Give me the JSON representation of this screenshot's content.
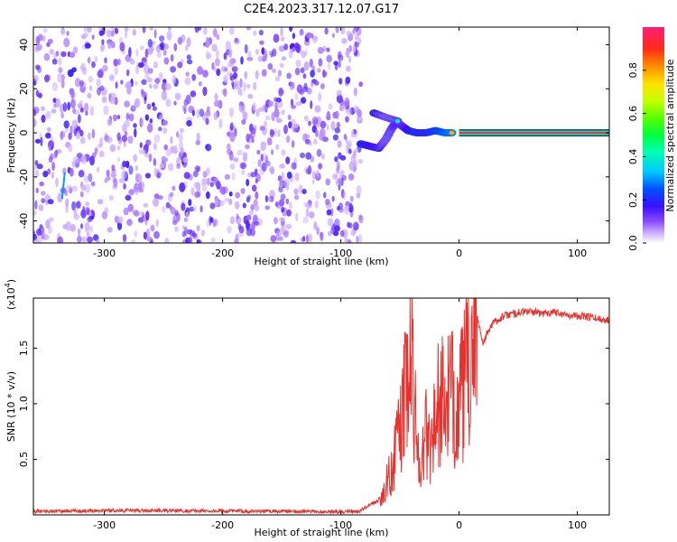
{
  "title": "C2E4.2023.317.12.07.G17",
  "colors": {
    "signal": "#e8302c",
    "axis": "#000000",
    "background": "#ffffff"
  },
  "chart_data": [
    {
      "type": "heatmap",
      "xlabel": "Height of straight line (km)",
      "ylabel": "Frequency (Hz)",
      "xlim": [
        -360,
        127
      ],
      "ylim": [
        -50,
        48
      ],
      "x_ticks": [
        -300,
        -200,
        -100,
        0,
        100
      ],
      "y_ticks": [
        -40,
        -20,
        0,
        20,
        40
      ],
      "x_tick_labels": [
        "-300",
        "-200",
        "-100",
        "0",
        "100"
      ],
      "y_tick_labels": [
        "-40",
        "-20",
        "0",
        "20",
        "40"
      ],
      "colorbar": {
        "label": "Normalized spectral amplitude",
        "ticks": [
          0.0,
          0.2,
          0.4,
          0.6,
          0.8
        ],
        "tick_labels": [
          "0.0",
          "0.2",
          "0.4",
          "0.6",
          "0.8"
        ],
        "range": [
          0,
          1
        ]
      },
      "noise_region_x": [
        -360,
        -83
      ],
      "carrier_line": {
        "x_start": 0,
        "x_end": 127,
        "freq": 0,
        "amplitude": 1.0
      },
      "signal_track": [
        {
          "x": -83,
          "freq": -5,
          "amplitude": 0.55
        },
        {
          "x": -76,
          "freq": -6,
          "amplitude": 0.5
        },
        {
          "x": -68,
          "freq": -7,
          "amplitude": 0.45
        },
        {
          "x": -62,
          "freq": -3,
          "amplitude": 0.3
        },
        {
          "x": -57,
          "freq": 2,
          "amplitude": 0.35
        },
        {
          "x": -53,
          "freq": 5,
          "amplitude": 0.45
        },
        {
          "x": -48,
          "freq": 3,
          "amplitude": 0.4
        },
        {
          "x": -43,
          "freq": 1,
          "amplitude": 0.5
        },
        {
          "x": -36,
          "freq": 0,
          "amplitude": 0.6
        },
        {
          "x": -28,
          "freq": 0,
          "amplitude": 0.55
        },
        {
          "x": -20,
          "freq": 1,
          "amplitude": 0.65
        },
        {
          "x": -12,
          "freq": 0,
          "amplitude": 0.75
        },
        {
          "x": -5,
          "freq": 0,
          "amplitude": 0.8
        }
      ],
      "upper_branch": [
        {
          "x": -72,
          "freq": 9,
          "amplitude": 0.5
        },
        {
          "x": -62,
          "freq": 7,
          "amplitude": 0.3
        },
        {
          "x": -50,
          "freq": 5,
          "amplitude": 0.4
        }
      ],
      "artifact": {
        "x": -335,
        "freq_from": -30,
        "freq_to": -18
      }
    },
    {
      "type": "line",
      "xlabel": "Height of straight line (km)",
      "ylabel": "SNR (10 * v/v)",
      "y_multiplier": "(x10^4)",
      "y_multiplier_base": "(x10",
      "y_multiplier_exp": "4",
      "y_multiplier_close": ")",
      "xlim": [
        -360,
        127
      ],
      "ylim": [
        0,
        19500
      ],
      "x_ticks": [
        -300,
        -200,
        -100,
        0,
        100
      ],
      "y_ticks": [
        5000,
        10000,
        15000
      ],
      "x_tick_labels": [
        "-300",
        "-200",
        "-100",
        "0",
        "100"
      ],
      "y_tick_labels": [
        "0.5",
        "1.0",
        "1.5"
      ],
      "series": [
        {
          "color": "#e8302c",
          "x": [
            -360,
            -300,
            -250,
            -200,
            -150,
            -100,
            -85,
            -65,
            -55,
            -48,
            -44,
            -40,
            -36,
            -32,
            -28,
            -25,
            -20,
            -16,
            -12,
            -8,
            -4,
            0,
            5,
            10,
            14,
            20,
            28,
            38,
            50,
            60,
            70,
            80,
            90,
            100,
            110,
            120,
            127
          ],
          "y": [
            300,
            400,
            380,
            350,
            330,
            280,
            300,
            1500,
            5000,
            9000,
            12000,
            14000,
            7000,
            4000,
            8000,
            6000,
            9000,
            10500,
            9500,
            11000,
            10000,
            10000,
            12000,
            14500,
            18500,
            15500,
            17200,
            17900,
            18200,
            18300,
            18100,
            18300,
            18000,
            17900,
            17800,
            17600,
            17500
          ]
        }
      ]
    }
  ]
}
